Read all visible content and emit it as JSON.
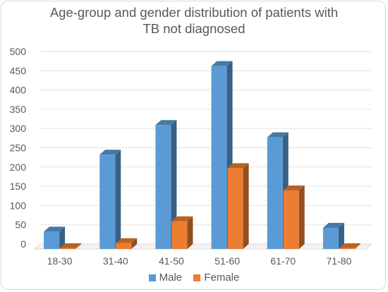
{
  "chart_data": {
    "type": "bar",
    "title_lines": [
      "Age-group and gender distribution of patients with",
      "TB not diagnosed"
    ],
    "categories": [
      "18-30",
      "31-40",
      "41-50",
      "51-60",
      "61-70",
      "71-80"
    ],
    "series": [
      {
        "name": "Male",
        "values": [
          45,
          245,
          322,
          475,
          290,
          55
        ],
        "color": "#5b9bd5"
      },
      {
        "name": "Female",
        "values": [
          2,
          15,
          72,
          210,
          152,
          2
        ],
        "color": "#ed7d31"
      }
    ],
    "xlabel": "",
    "ylabel": "",
    "ylim": [
      0,
      500
    ],
    "yticks": [
      0,
      50,
      100,
      150,
      200,
      250,
      300,
      350,
      400,
      450,
      500
    ],
    "grid": true,
    "legend_position": "bottom"
  }
}
